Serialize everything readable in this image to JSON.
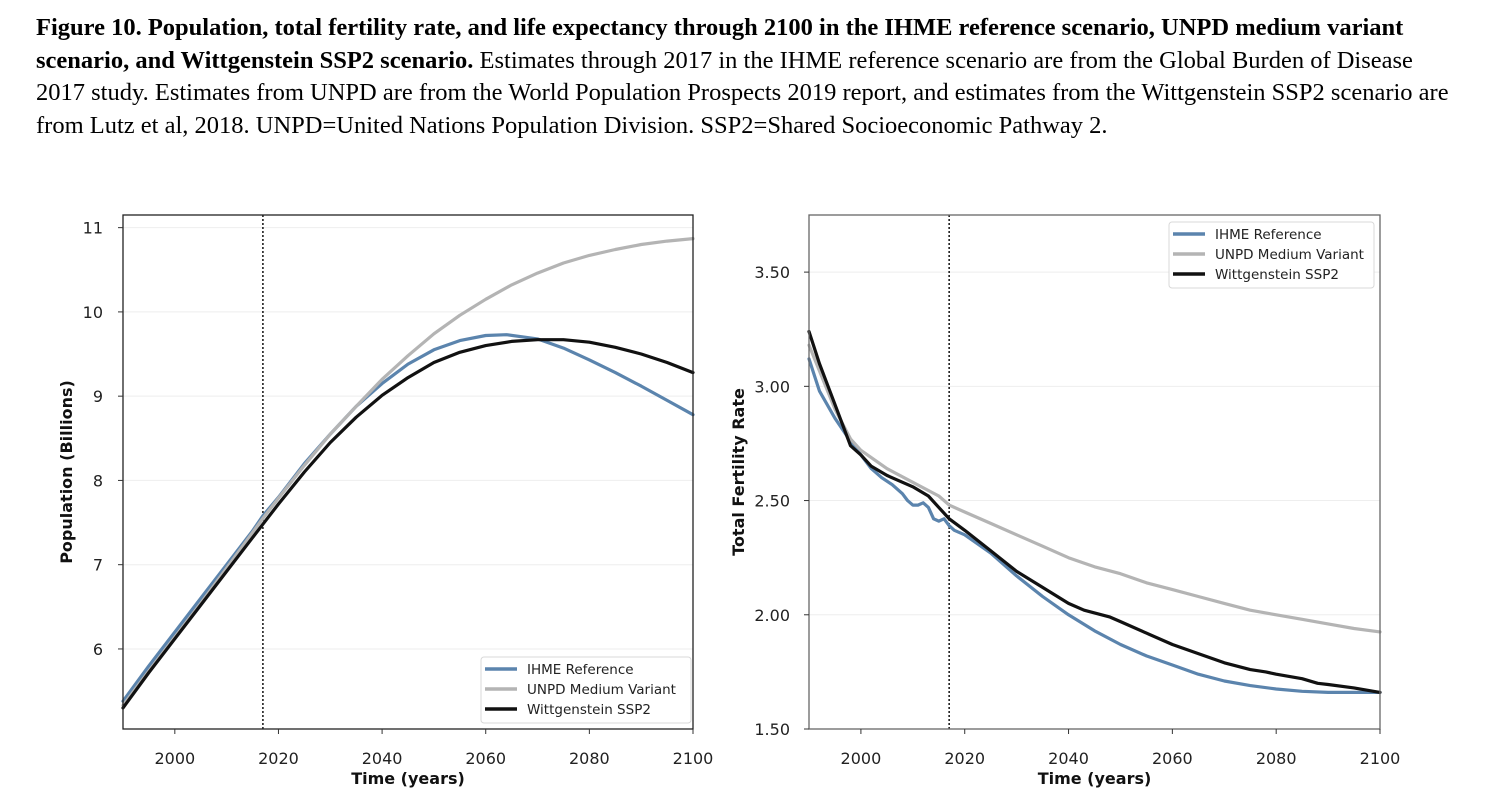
{
  "caption": {
    "bold": "Figure 10. Population, total fertility rate, and life expectancy through 2100 in the IHME reference scenario, UNPD medium variant scenario, and Wittgenstein SSP2 scenario.",
    "body": " Estimates through 2017 in the IHME reference scenario are from the Global Burden of Disease 2017 study. Estimates from UNPD are from the World Population Prospects 2019 report, and estimates from the Wittgenstein SSP2 scenario are from Lutz et al, 2018. UNPD=United Nations Population Division. SSP2=Shared Socioeconomic Pathway 2."
  },
  "colors": {
    "ihme": "#5b84ad",
    "unpd": "#b4b4b4",
    "wittgenstein": "#111111"
  },
  "chart_data": [
    {
      "type": "line",
      "title": "",
      "xlabel": "Time (years)",
      "ylabel": "Population (Billions)",
      "xlim": [
        1990,
        2100
      ],
      "ylim": [
        5.05,
        11.15
      ],
      "xticks": [
        2000,
        2020,
        2040,
        2060,
        2080,
        2100
      ],
      "yticks": [
        6,
        7,
        8,
        9,
        10,
        11
      ],
      "ytick_labels": [
        "6",
        "7",
        "8",
        "9",
        "10",
        "11"
      ],
      "grid": true,
      "vline": 2017,
      "legend_position": "lower-right",
      "series": [
        {
          "name": "IHME Reference",
          "key": "ihme",
          "x": [
            1990,
            1995,
            2000,
            2005,
            2010,
            2015,
            2017,
            2020,
            2025,
            2030,
            2035,
            2040,
            2045,
            2050,
            2055,
            2060,
            2064,
            2070,
            2075,
            2080,
            2085,
            2090,
            2095,
            2100
          ],
          "y": [
            5.38,
            5.8,
            6.2,
            6.6,
            7.0,
            7.4,
            7.58,
            7.8,
            8.2,
            8.55,
            8.88,
            9.15,
            9.38,
            9.55,
            9.66,
            9.72,
            9.73,
            9.68,
            9.57,
            9.43,
            9.28,
            9.12,
            8.95,
            8.78
          ]
        },
        {
          "name": "UNPD Medium Variant",
          "key": "unpd",
          "x": [
            1990,
            1995,
            2000,
            2005,
            2010,
            2015,
            2017,
            2020,
            2025,
            2030,
            2035,
            2040,
            2045,
            2050,
            2055,
            2060,
            2065,
            2070,
            2075,
            2080,
            2085,
            2090,
            2095,
            2100
          ],
          "y": [
            5.33,
            5.74,
            6.14,
            6.54,
            6.96,
            7.38,
            7.55,
            7.79,
            8.18,
            8.55,
            8.88,
            9.2,
            9.48,
            9.74,
            9.96,
            10.15,
            10.32,
            10.46,
            10.58,
            10.67,
            10.74,
            10.8,
            10.84,
            10.87
          ]
        },
        {
          "name": "Wittgenstein SSP2",
          "key": "wittgenstein",
          "x": [
            1990,
            1995,
            2000,
            2005,
            2010,
            2015,
            2017,
            2020,
            2025,
            2030,
            2035,
            2040,
            2045,
            2050,
            2055,
            2060,
            2065,
            2070,
            2075,
            2080,
            2085,
            2090,
            2095,
            2100
          ],
          "y": [
            5.3,
            5.72,
            6.12,
            6.52,
            6.92,
            7.32,
            7.48,
            7.72,
            8.1,
            8.45,
            8.75,
            9.01,
            9.22,
            9.4,
            9.52,
            9.6,
            9.65,
            9.67,
            9.67,
            9.64,
            9.58,
            9.5,
            9.4,
            9.28
          ]
        }
      ]
    },
    {
      "type": "line",
      "title": "",
      "xlabel": "Time (years)",
      "ylabel": "Total Fertility Rate",
      "xlim": [
        1990,
        2100
      ],
      "ylim": [
        1.5,
        3.75
      ],
      "xticks": [
        2000,
        2020,
        2040,
        2060,
        2080,
        2100
      ],
      "yticks": [
        1.5,
        2.0,
        2.5,
        3.0,
        3.5
      ],
      "ytick_labels": [
        "1.50",
        "2.00",
        "2.50",
        "3.00",
        "3.50"
      ],
      "grid": true,
      "vline": 2017,
      "legend_position": "upper-right",
      "series": [
        {
          "name": "IHME Reference",
          "key": "ihme",
          "x": [
            1990,
            1992,
            1995,
            1998,
            2000,
            2002,
            2004,
            2006,
            2008,
            2009,
            2010,
            2011,
            2012,
            2013,
            2014,
            2015,
            2016,
            2017,
            2018,
            2020,
            2025,
            2030,
            2035,
            2040,
            2045,
            2050,
            2055,
            2060,
            2065,
            2070,
            2075,
            2080,
            2085,
            2090,
            2095,
            2100
          ],
          "y": [
            3.12,
            2.98,
            2.86,
            2.76,
            2.7,
            2.64,
            2.6,
            2.57,
            2.53,
            2.5,
            2.48,
            2.48,
            2.49,
            2.47,
            2.42,
            2.41,
            2.42,
            2.39,
            2.37,
            2.35,
            2.27,
            2.17,
            2.08,
            2.0,
            1.93,
            1.87,
            1.82,
            1.78,
            1.74,
            1.71,
            1.69,
            1.675,
            1.665,
            1.66,
            1.66,
            1.66
          ]
        },
        {
          "name": "UNPD Medium Variant",
          "key": "unpd",
          "x": [
            1990,
            1995,
            1998,
            2000,
            2005,
            2010,
            2015,
            2017,
            2020,
            2025,
            2030,
            2035,
            2040,
            2045,
            2050,
            2055,
            2060,
            2065,
            2070,
            2075,
            2080,
            2085,
            2090,
            2095,
            2100
          ],
          "y": [
            3.18,
            2.9,
            2.77,
            2.72,
            2.64,
            2.58,
            2.52,
            2.48,
            2.45,
            2.4,
            2.35,
            2.3,
            2.25,
            2.21,
            2.18,
            2.14,
            2.11,
            2.08,
            2.05,
            2.02,
            2.0,
            1.98,
            1.96,
            1.94,
            1.925
          ]
        },
        {
          "name": "Wittgenstein SSP2",
          "key": "wittgenstein",
          "x": [
            1990,
            1992,
            1995,
            1998,
            2000,
            2002,
            2005,
            2010,
            2013,
            2015,
            2017,
            2020,
            2025,
            2030,
            2035,
            2040,
            2043,
            2048,
            2050,
            2055,
            2060,
            2065,
            2070,
            2075,
            2078,
            2080,
            2085,
            2088,
            2090,
            2095,
            2100
          ],
          "y": [
            3.24,
            3.1,
            2.92,
            2.74,
            2.7,
            2.65,
            2.61,
            2.56,
            2.52,
            2.47,
            2.42,
            2.37,
            2.28,
            2.19,
            2.12,
            2.05,
            2.02,
            1.99,
            1.97,
            1.92,
            1.87,
            1.83,
            1.79,
            1.76,
            1.75,
            1.74,
            1.72,
            1.7,
            1.695,
            1.68,
            1.66
          ]
        }
      ]
    }
  ]
}
